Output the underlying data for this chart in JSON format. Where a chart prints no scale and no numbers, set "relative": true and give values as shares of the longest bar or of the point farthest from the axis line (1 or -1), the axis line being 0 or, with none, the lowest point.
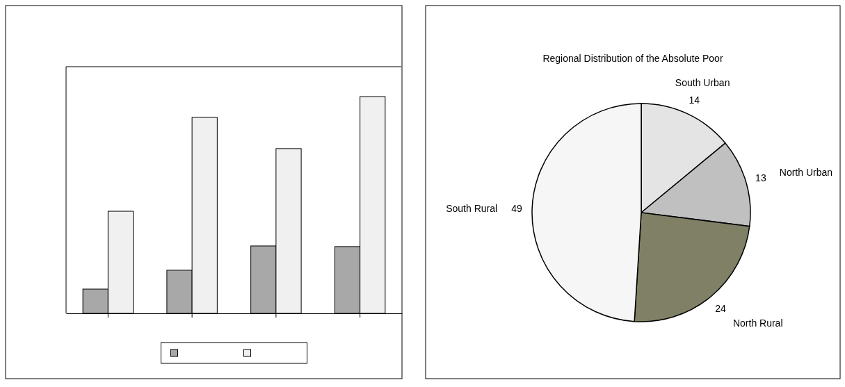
{
  "chart_data": [
    {
      "type": "bar",
      "relative": true,
      "categories": [
        null,
        null,
        null,
        null
      ],
      "series": [
        {
          "color": "#a8a8a8",
          "values": [
            0.112,
            0.199,
            0.311,
            0.308
          ]
        },
        {
          "color": "#f0f0f0",
          "values": [
            0.471,
            0.904,
            0.76,
            1
          ]
        }
      ]
    },
    {
      "type": "pie",
      "title": "Regional Distribution of the Absolute Poor",
      "categories": [
        "South Urban",
        "North Urban",
        "North Rural",
        "South Rural"
      ],
      "values": [
        14,
        13,
        24,
        49
      ],
      "colors": [
        "#e4e4e4",
        "#c0c0c0",
        "#808066",
        "#f6f6f6"
      ],
      "data_labels": true
    }
  ]
}
